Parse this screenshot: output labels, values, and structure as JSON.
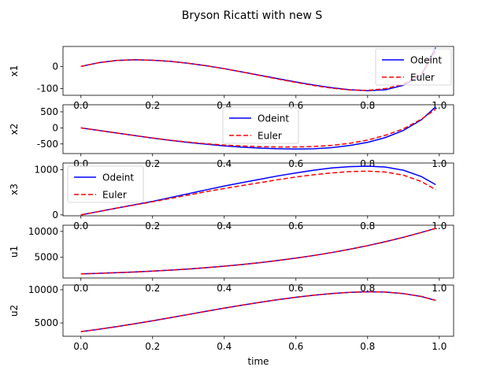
{
  "title": "Bryson Ricatti with new S",
  "colors": {
    "odeint": "#0000ff",
    "euler": "#ff0000",
    "axis": "#000000",
    "background": "#ffffff"
  },
  "chart_data": [
    {
      "type": "line",
      "ylabel": "x1",
      "xlim": [
        -0.05,
        1.04
      ],
      "ylim": [
        -130,
        90
      ],
      "yticks": [
        -100,
        0
      ],
      "xticks": [
        0.0,
        0.2,
        0.4,
        0.6,
        0.8,
        1.0
      ],
      "xticks_visible": false,
      "legend": {
        "position": "upper right",
        "entries": [
          "Odeint",
          "Euler"
        ]
      },
      "x": [
        0,
        0.05,
        0.1,
        0.15,
        0.2,
        0.25,
        0.3,
        0.35,
        0.4,
        0.45,
        0.5,
        0.55,
        0.6,
        0.65,
        0.7,
        0.75,
        0.8,
        0.85,
        0.9,
        0.95,
        0.99
      ],
      "series": [
        {
          "name": "Odeint",
          "style": "solid",
          "values": [
            0,
            17,
            27,
            30,
            28,
            23,
            14,
            3,
            -10,
            -25,
            -40,
            -55,
            -70,
            -84,
            -96,
            -105,
            -109,
            -105,
            -85,
            -40,
            85
          ]
        },
        {
          "name": "Euler",
          "style": "dashed",
          "values": [
            0,
            17,
            27,
            30,
            28,
            23,
            14,
            3,
            -10,
            -25,
            -41,
            -57,
            -72,
            -86,
            -98,
            -106,
            -108,
            -100,
            -80,
            -35,
            70
          ]
        }
      ]
    },
    {
      "type": "line",
      "ylabel": "x2",
      "xlim": [
        -0.05,
        1.04
      ],
      "ylim": [
        -800,
        720
      ],
      "yticks": [
        -500,
        0,
        500
      ],
      "xticks": [
        0.0,
        0.2,
        0.4,
        0.6,
        0.8,
        1.0
      ],
      "xticks_visible": false,
      "legend": {
        "position": "upper center",
        "entries": [
          "Odeint",
          "Euler"
        ]
      },
      "x": [
        0,
        0.05,
        0.1,
        0.15,
        0.2,
        0.25,
        0.3,
        0.35,
        0.4,
        0.45,
        0.5,
        0.55,
        0.6,
        0.65,
        0.7,
        0.75,
        0.8,
        0.85,
        0.9,
        0.95,
        0.99
      ],
      "series": [
        {
          "name": "Odeint",
          "style": "solid",
          "values": [
            0,
            -80,
            -160,
            -240,
            -320,
            -390,
            -455,
            -510,
            -560,
            -600,
            -630,
            -650,
            -660,
            -650,
            -615,
            -550,
            -450,
            -300,
            -80,
            250,
            650
          ]
        },
        {
          "name": "Euler",
          "style": "dashed",
          "values": [
            0,
            -80,
            -160,
            -240,
            -315,
            -385,
            -445,
            -495,
            -535,
            -565,
            -585,
            -595,
            -595,
            -580,
            -545,
            -480,
            -380,
            -230,
            -30,
            270,
            580
          ]
        }
      ]
    },
    {
      "type": "line",
      "ylabel": "x3",
      "xlim": [
        -0.05,
        1.04
      ],
      "ylim": [
        -20,
        1150
      ],
      "yticks": [
        0,
        1000
      ],
      "xticks": [
        0.0,
        0.2,
        0.4,
        0.6,
        0.8,
        1.0
      ],
      "xticks_visible": false,
      "legend": {
        "position": "upper left",
        "entries": [
          "Odeint",
          "Euler"
        ]
      },
      "x": [
        0,
        0.05,
        0.1,
        0.15,
        0.2,
        0.25,
        0.3,
        0.35,
        0.4,
        0.45,
        0.5,
        0.55,
        0.6,
        0.65,
        0.7,
        0.75,
        0.8,
        0.85,
        0.9,
        0.95,
        0.99
      ],
      "series": [
        {
          "name": "Odeint",
          "style": "solid",
          "values": [
            0,
            75,
            150,
            225,
            300,
            385,
            470,
            555,
            640,
            715,
            790,
            865,
            930,
            990,
            1040,
            1070,
            1080,
            1060,
            990,
            850,
            670
          ]
        },
        {
          "name": "Euler",
          "style": "dashed",
          "values": [
            0,
            75,
            150,
            220,
            290,
            365,
            440,
            515,
            585,
            650,
            715,
            780,
            840,
            890,
            930,
            960,
            970,
            950,
            880,
            740,
            560
          ]
        }
      ]
    },
    {
      "type": "line",
      "ylabel": "u1",
      "xlim": [
        -0.05,
        1.04
      ],
      "ylim": [
        1000,
        11200
      ],
      "yticks": [
        5000,
        10000
      ],
      "xticks": [
        0.0,
        0.2,
        0.4,
        0.6,
        0.8,
        1.0
      ],
      "xticks_visible": false,
      "legend": null,
      "x": [
        0,
        0.05,
        0.1,
        0.15,
        0.2,
        0.25,
        0.3,
        0.35,
        0.4,
        0.45,
        0.5,
        0.55,
        0.6,
        0.65,
        0.7,
        0.75,
        0.8,
        0.85,
        0.9,
        0.95,
        0.99
      ],
      "series": [
        {
          "name": "Odeint",
          "style": "solid",
          "values": [
            1800,
            1900,
            2020,
            2160,
            2330,
            2520,
            2740,
            2990,
            3280,
            3600,
            3970,
            4380,
            4840,
            5350,
            5920,
            6550,
            7250,
            8020,
            8870,
            9800,
            10600
          ]
        },
        {
          "name": "Euler",
          "style": "dashed",
          "values": [
            1800,
            1900,
            2020,
            2160,
            2330,
            2520,
            2740,
            2990,
            3280,
            3600,
            3970,
            4380,
            4840,
            5350,
            5920,
            6550,
            7250,
            8020,
            8870,
            9800,
            10600
          ]
        }
      ]
    },
    {
      "type": "line",
      "ylabel": "u2",
      "xlabel": "time",
      "xlim": [
        -0.05,
        1.04
      ],
      "ylim": [
        3000,
        10700
      ],
      "yticks": [
        5000,
        10000
      ],
      "xticks": [
        0.0,
        0.2,
        0.4,
        0.6,
        0.8,
        1.0
      ],
      "xticks_visible": true,
      "legend": null,
      "x": [
        0,
        0.05,
        0.1,
        0.15,
        0.2,
        0.25,
        0.3,
        0.35,
        0.4,
        0.45,
        0.5,
        0.55,
        0.6,
        0.65,
        0.7,
        0.75,
        0.8,
        0.85,
        0.9,
        0.95,
        0.99
      ],
      "series": [
        {
          "name": "Odeint",
          "style": "solid",
          "values": [
            3700,
            4050,
            4450,
            4880,
            5330,
            5800,
            6280,
            6760,
            7230,
            7680,
            8110,
            8510,
            8870,
            9180,
            9430,
            9610,
            9700,
            9650,
            9420,
            8980,
            8400
          ]
        },
        {
          "name": "Euler",
          "style": "dashed",
          "values": [
            3700,
            4050,
            4450,
            4880,
            5330,
            5800,
            6280,
            6760,
            7230,
            7680,
            8110,
            8510,
            8870,
            9180,
            9430,
            9610,
            9700,
            9650,
            9420,
            8980,
            8400
          ]
        }
      ]
    }
  ]
}
